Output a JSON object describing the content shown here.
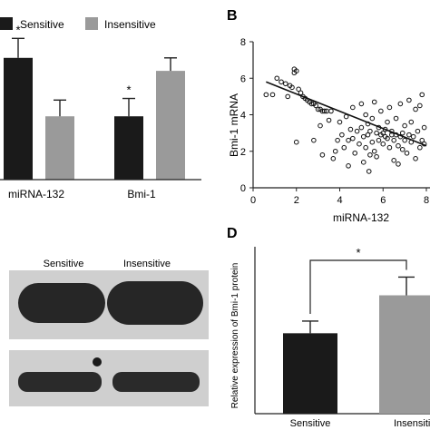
{
  "panel_labels": {
    "b": "B",
    "d": "D"
  },
  "colors": {
    "sensitive": "#1a1a1a",
    "insensitive": "#9a9a9a",
    "axis": "#222222",
    "blot_bg": "#cfcfcf",
    "band": "#262626"
  },
  "blot": {
    "sensitive_label": "Sensitive",
    "insensitive_label": "Insensitive"
  },
  "chart_data": [
    {
      "id": "A",
      "type": "bar",
      "categories": [
        "miRNA-132",
        "Bmi-1"
      ],
      "series": [
        {
          "name": "Sensitive",
          "values": [
            7.5,
            3.9
          ],
          "errors": [
            1.2,
            1.1
          ]
        },
        {
          "name": "Insensitive",
          "values": [
            3.9,
            6.7
          ],
          "errors": [
            1.0,
            0.8
          ]
        }
      ],
      "ylim": [
        0,
        9.5
      ],
      "significance": [
        {
          "category": "miRNA-132",
          "series": "Sensitive",
          "label": "*"
        },
        {
          "category": "Bmi-1",
          "series": "Sensitive",
          "label": "*"
        }
      ],
      "legend": "top-left"
    },
    {
      "id": "B",
      "type": "scatter",
      "xlabel": "miRNA-132",
      "ylabel": "Bmi-1 mRNA",
      "xlim": [
        0,
        8
      ],
      "ylim": [
        0,
        8
      ],
      "xticks": [
        0,
        2,
        4,
        6,
        8
      ],
      "yticks": [
        0,
        2,
        4,
        6,
        8
      ],
      "tick_labels": {
        "x": [
          "0",
          "2",
          "4",
          "6",
          "8"
        ],
        "y": [
          "0",
          "2",
          "4",
          "6",
          "8"
        ]
      },
      "trendline": {
        "x": [
          0.6,
          8.0
        ],
        "y": [
          5.8,
          2.3
        ]
      },
      "points": [
        [
          0.6,
          5.1
        ],
        [
          0.9,
          5.1
        ],
        [
          1.1,
          6.0
        ],
        [
          1.3,
          5.8
        ],
        [
          1.5,
          5.7
        ],
        [
          1.7,
          5.6
        ],
        [
          1.9,
          6.5
        ],
        [
          1.9,
          6.3
        ],
        [
          2.0,
          6.4
        ],
        [
          1.8,
          5.5
        ],
        [
          1.6,
          5.0
        ],
        [
          2.1,
          5.4
        ],
        [
          2.2,
          5.2
        ],
        [
          2.3,
          5.0
        ],
        [
          2.4,
          4.9
        ],
        [
          2.5,
          4.8
        ],
        [
          2.6,
          4.7
        ],
        [
          2.7,
          4.6
        ],
        [
          2.8,
          4.6
        ],
        [
          2.9,
          4.5
        ],
        [
          3.0,
          4.3
        ],
        [
          3.1,
          4.3
        ],
        [
          3.2,
          4.2
        ],
        [
          3.3,
          4.2
        ],
        [
          3.4,
          4.2
        ],
        [
          3.6,
          4.2
        ],
        [
          2.0,
          2.5
        ],
        [
          2.8,
          2.6
        ],
        [
          3.1,
          3.4
        ],
        [
          3.2,
          1.8
        ],
        [
          3.5,
          3.7
        ],
        [
          3.7,
          1.6
        ],
        [
          3.9,
          2.6
        ],
        [
          3.8,
          2.0
        ],
        [
          4.0,
          3.6
        ],
        [
          4.1,
          2.9
        ],
        [
          4.2,
          2.2
        ],
        [
          4.3,
          3.9
        ],
        [
          4.4,
          2.6
        ],
        [
          4.5,
          3.2
        ],
        [
          4.6,
          2.7
        ],
        [
          4.7,
          1.9
        ],
        [
          4.8,
          3.1
        ],
        [
          4.9,
          2.4
        ],
        [
          4.4,
          1.2
        ],
        [
          4.6,
          4.4
        ],
        [
          5.0,
          4.6
        ],
        [
          5.0,
          3.3
        ],
        [
          5.1,
          2.8
        ],
        [
          5.1,
          1.4
        ],
        [
          5.2,
          4.0
        ],
        [
          5.2,
          2.2
        ],
        [
          5.3,
          3.5
        ],
        [
          5.3,
          2.9
        ],
        [
          5.4,
          3.1
        ],
        [
          5.4,
          1.8
        ],
        [
          5.5,
          3.8
        ],
        [
          5.5,
          2.5
        ],
        [
          5.6,
          2.0
        ],
        [
          5.6,
          4.7
        ],
        [
          5.7,
          3.0
        ],
        [
          5.7,
          1.7
        ],
        [
          5.8,
          3.3
        ],
        [
          5.8,
          2.6
        ],
        [
          5.9,
          2.9
        ],
        [
          5.9,
          4.2
        ],
        [
          5.35,
          0.9
        ],
        [
          6.0,
          3.0
        ],
        [
          6.0,
          2.4
        ],
        [
          6.1,
          3.2
        ],
        [
          6.1,
          2.8
        ],
        [
          6.2,
          2.7
        ],
        [
          6.2,
          3.6
        ],
        [
          6.3,
          2.2
        ],
        [
          6.3,
          4.4
        ],
        [
          6.4,
          2.9
        ],
        [
          6.4,
          3.1
        ],
        [
          6.5,
          2.6
        ],
        [
          6.5,
          1.5
        ],
        [
          6.6,
          3.8
        ],
        [
          6.6,
          2.9
        ],
        [
          6.7,
          2.3
        ],
        [
          6.7,
          1.3
        ],
        [
          6.8,
          4.6
        ],
        [
          6.8,
          2.8
        ],
        [
          6.9,
          3.0
        ],
        [
          6.9,
          2.1
        ],
        [
          7.0,
          3.4
        ],
        [
          7.0,
          2.6
        ],
        [
          7.1,
          1.9
        ],
        [
          7.2,
          2.9
        ],
        [
          7.2,
          4.8
        ],
        [
          7.3,
          2.5
        ],
        [
          7.3,
          3.6
        ],
        [
          7.4,
          2.8
        ],
        [
          7.5,
          1.6
        ],
        [
          7.5,
          4.3
        ],
        [
          7.6,
          3.1
        ],
        [
          7.7,
          2.2
        ],
        [
          7.8,
          2.6
        ],
        [
          7.8,
          5.1
        ],
        [
          7.9,
          2.4
        ],
        [
          7.9,
          3.3
        ],
        [
          7.7,
          4.5
        ]
      ]
    },
    {
      "id": "D",
      "type": "bar",
      "categories": [
        "Sensitive",
        "Insensitive"
      ],
      "values": [
        5.3,
        7.8
      ],
      "errors": [
        0.8,
        1.2
      ],
      "ylim": [
        0,
        11
      ],
      "ylabel": "Relative expression of Bmi-1 protein",
      "significance": {
        "label": "*"
      }
    }
  ]
}
